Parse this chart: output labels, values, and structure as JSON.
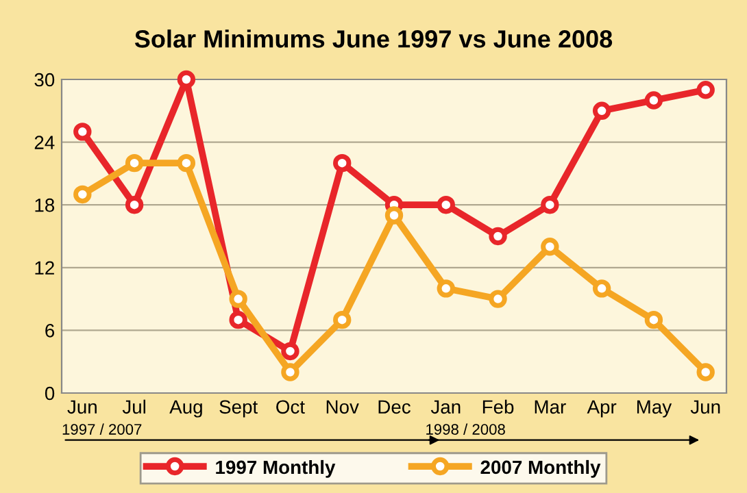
{
  "chart_data": {
    "type": "line",
    "title": "Solar Minimums June 1997 vs June 2008",
    "categories": [
      "Jun",
      "Jul",
      "Aug",
      "Sept",
      "Oct",
      "Nov",
      "Dec",
      "Jan",
      "Feb",
      "Mar",
      "Apr",
      "May",
      "Jun"
    ],
    "series": [
      {
        "name": "1997 Monthly",
        "color": "#e8262a",
        "values": [
          25,
          18,
          30,
          7,
          4,
          22,
          18,
          18,
          15,
          18,
          27,
          28,
          29
        ]
      },
      {
        "name": "2007 Monthly",
        "color": "#f5a623",
        "values": [
          19,
          22,
          22,
          9,
          2,
          7,
          17,
          10,
          9,
          14,
          10,
          7,
          2
        ]
      }
    ],
    "ylim": [
      0,
      30
    ],
    "yticks": [
      0,
      6,
      12,
      18,
      24,
      30
    ],
    "grid": "y",
    "legend": "bottom",
    "marker": "circle",
    "line_style": "solid",
    "annotations": [
      "1997 / 2007",
      "1998 / 2008"
    ]
  }
}
